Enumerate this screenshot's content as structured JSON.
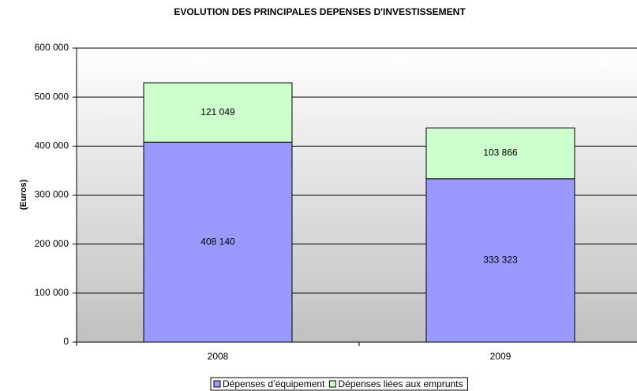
{
  "chart_data": {
    "type": "stacked_bar",
    "title": "EVOLUTION DES PRINCIPALES DEPENSES D'INVESTISSEMENT",
    "y_label": "(Euros)",
    "categories": [
      "2008",
      "2009"
    ],
    "series": [
      {
        "name": "Dépenses d’équipement",
        "color": "#9999ff",
        "values": [
          408140,
          333323
        ],
        "value_labels": [
          "408 140",
          "333 323"
        ]
      },
      {
        "name": "Dépenses liées aux emprunts",
        "color": "#ccffcc",
        "values": [
          121049,
          103866
        ],
        "value_labels": [
          "121 049",
          "103 866"
        ]
      }
    ],
    "ylim": [
      0,
      600000
    ],
    "yticks": [
      {
        "value": 0,
        "label": "0"
      },
      {
        "value": 100000,
        "label": "100 000"
      },
      {
        "value": 200000,
        "label": "200 000"
      },
      {
        "value": 300000,
        "label": "300 000"
      },
      {
        "value": 400000,
        "label": "400 000"
      },
      {
        "value": 500000,
        "label": "500 000"
      },
      {
        "value": 600000,
        "label": "600 000"
      }
    ],
    "grid": true,
    "legend": "bottom"
  }
}
